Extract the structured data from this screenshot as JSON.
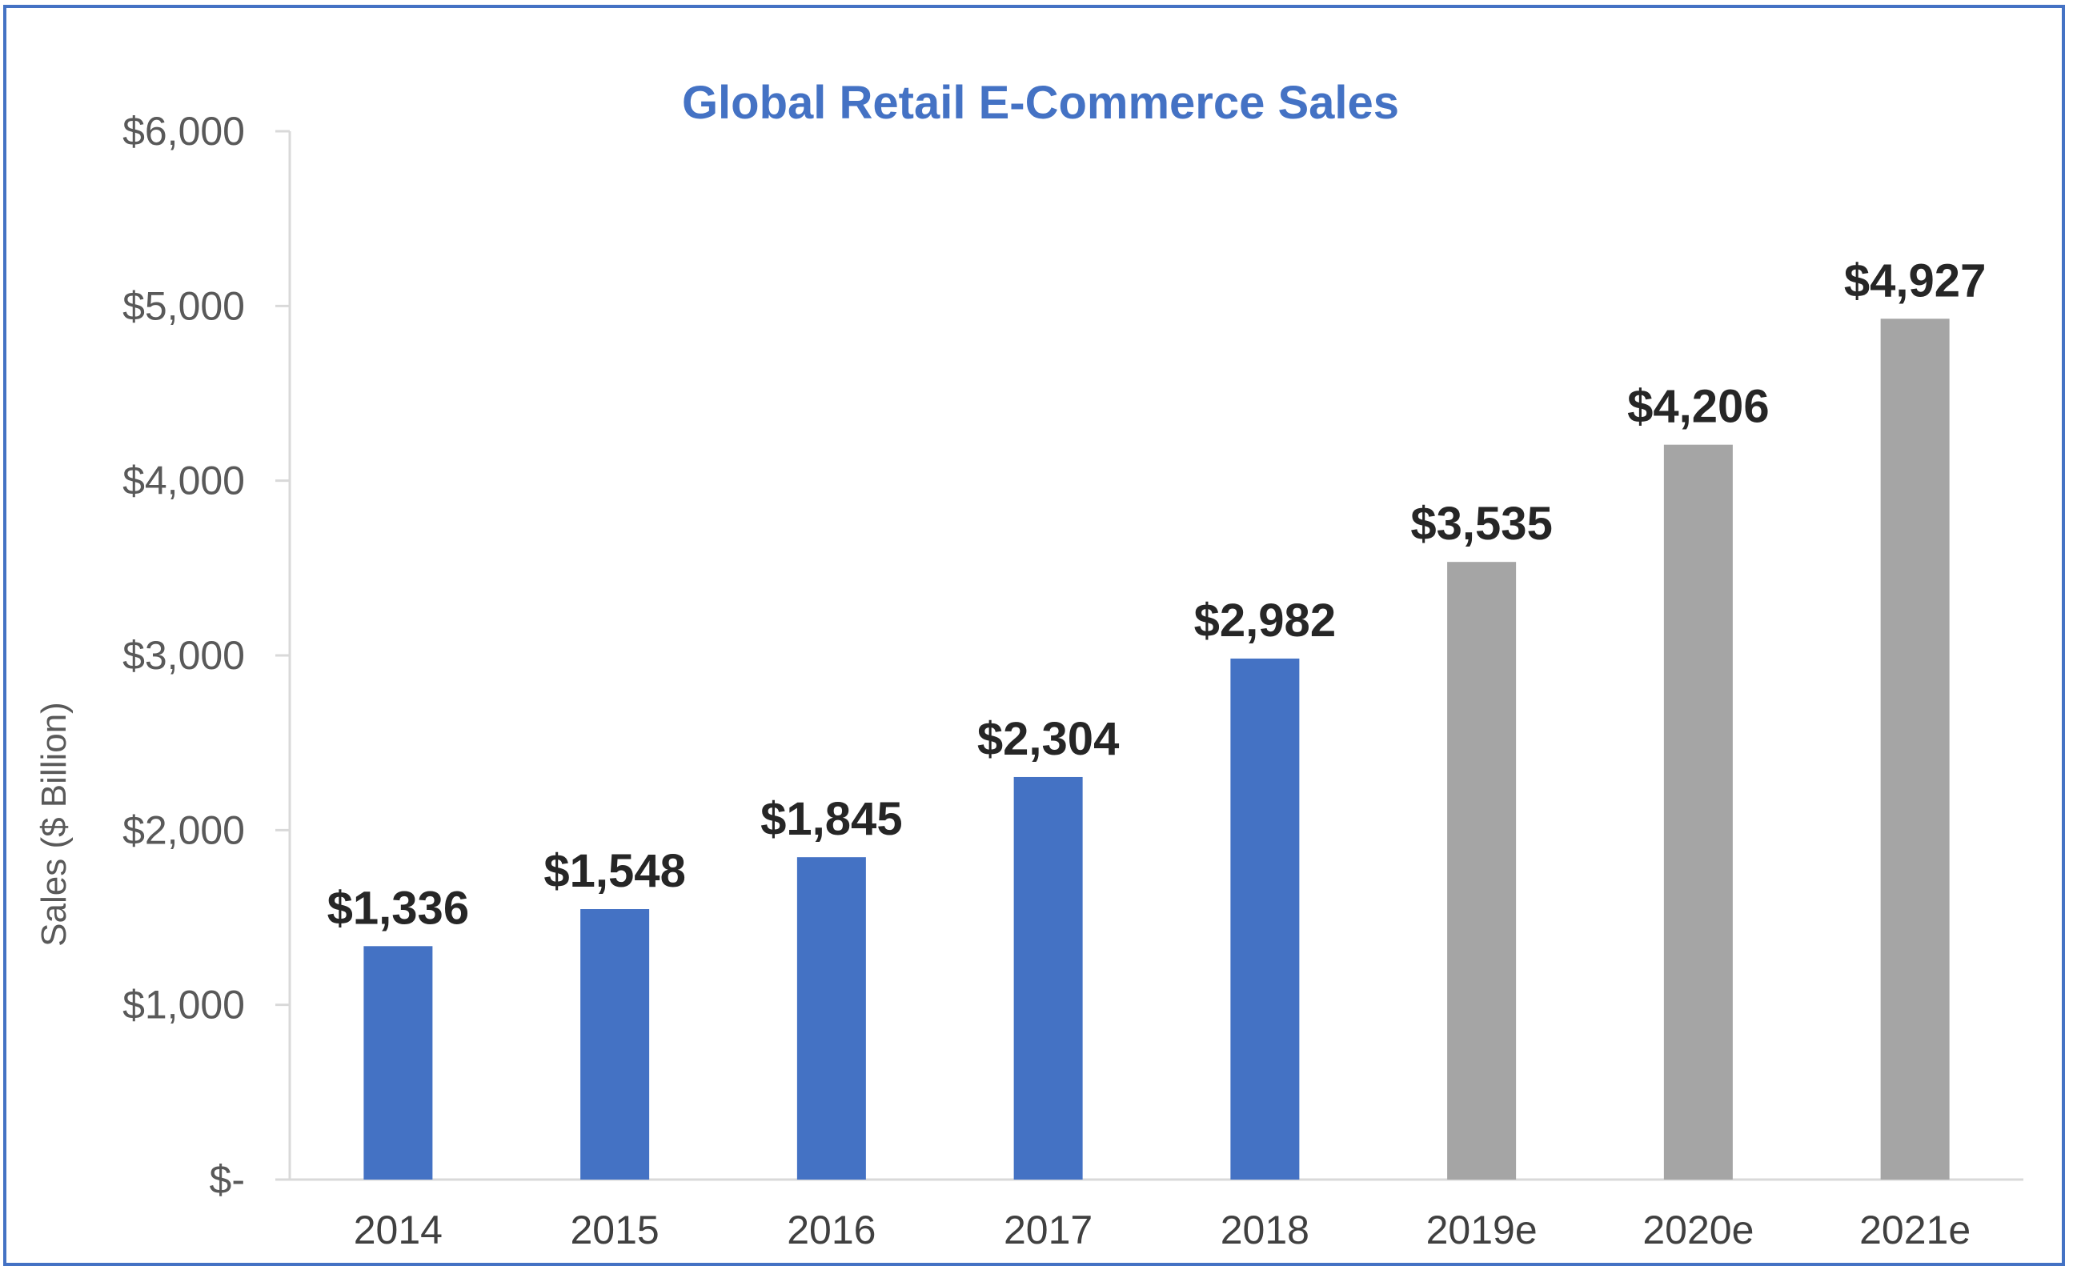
{
  "chart_data": {
    "type": "bar",
    "title": "Global Retail E-Commerce Sales",
    "xlabel": "",
    "ylabel": "Sales ($ Billion)",
    "ylim": [
      0,
      6000
    ],
    "yticks": [
      0,
      1000,
      2000,
      3000,
      4000,
      5000,
      6000
    ],
    "ytick_labels": [
      "$-",
      "$1,000",
      "$2,000",
      "$3,000",
      "$4,000",
      "$5,000",
      "$6,000"
    ],
    "grid": false,
    "legend": "none",
    "categories": [
      "2014",
      "2015",
      "2016",
      "2017",
      "2018",
      "2019e",
      "2020e",
      "2021e"
    ],
    "values": [
      1336,
      1548,
      1845,
      2304,
      2982,
      3535,
      4206,
      4927
    ],
    "data_labels": [
      "$1,336",
      "$1,548",
      "$1,845",
      "$2,304",
      "$2,982",
      "$3,535",
      "$4,206",
      "$4,927"
    ],
    "colors": {
      "actual": "#4472c4",
      "estimate": "#a5a5a5",
      "title": "#4472c4",
      "frame": "#4472c4",
      "axis": "#d9d9d9"
    },
    "bar_colors": [
      "#4472c4",
      "#4472c4",
      "#4472c4",
      "#4472c4",
      "#4472c4",
      "#a5a5a5",
      "#a5a5a5",
      "#a5a5a5"
    ]
  }
}
